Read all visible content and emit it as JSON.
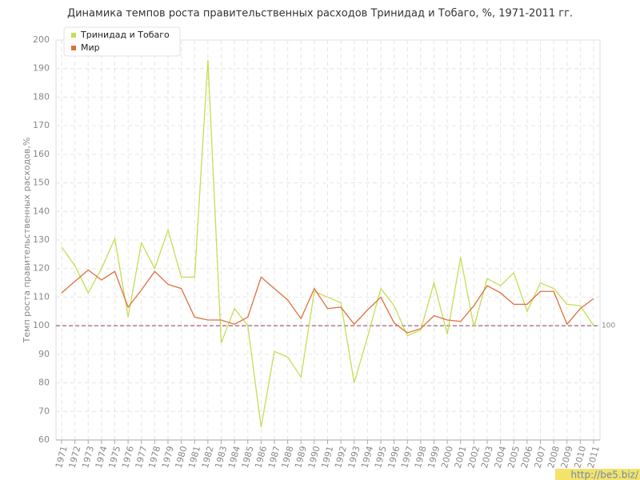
{
  "chart_data": {
    "type": "line",
    "title": "Динамика темпов роста правительственных расходов Тринидад и Тобаго, %, 1971-2011 гг.",
    "y_label": "Темп роста правительственных расходов,%",
    "x": [
      1971,
      1972,
      1973,
      1974,
      1975,
      1976,
      1977,
      1978,
      1979,
      1980,
      1981,
      1982,
      1983,
      1984,
      1985,
      1986,
      1987,
      1988,
      1989,
      1990,
      1991,
      1992,
      1993,
      1994,
      1995,
      1996,
      1997,
      1998,
      1999,
      2000,
      2001,
      2002,
      2003,
      2004,
      2005,
      2006,
      2007,
      2008,
      2009,
      2010,
      2011
    ],
    "xlim": [
      1971,
      2011
    ],
    "series": [
      {
        "name": "Тринидад и Тобаго",
        "color": "#c3de55",
        "values": [
          127.5,
          121,
          111.5,
          120,
          130.5,
          103,
          129,
          120,
          133.5,
          117,
          117,
          193,
          94,
          106,
          100,
          64.5,
          91,
          89,
          82,
          112,
          110,
          108,
          80,
          96,
          113,
          107,
          96.5,
          98.5,
          115,
          97,
          124,
          99.5,
          116.5,
          114,
          118.5,
          105,
          115,
          113,
          107.5,
          107,
          100
        ]
      },
      {
        "name": "Мир",
        "color": "#e0703f",
        "values": [
          111.5,
          115.5,
          119.5,
          116,
          119,
          106.5,
          112.5,
          119,
          114.5,
          113,
          103,
          102,
          102,
          100.5,
          103,
          117,
          113,
          109,
          102.5,
          113,
          106,
          106.5,
          100.5,
          105.5,
          110,
          101,
          97.5,
          99,
          103.5,
          102,
          101.5,
          107,
          114,
          111.5,
          107.5,
          107.5,
          112,
          112,
          100.5,
          106,
          109.5
        ]
      }
    ],
    "ylim": [
      60,
      200
    ],
    "yticks": [
      60,
      70,
      80,
      90,
      100,
      110,
      120,
      130,
      140,
      150,
      160,
      170,
      180,
      190,
      200
    ],
    "grid": true,
    "reference_line": 100,
    "reference_color": "#8b3a50",
    "legend": "top-left",
    "watermark": "http://be5.biz/"
  }
}
